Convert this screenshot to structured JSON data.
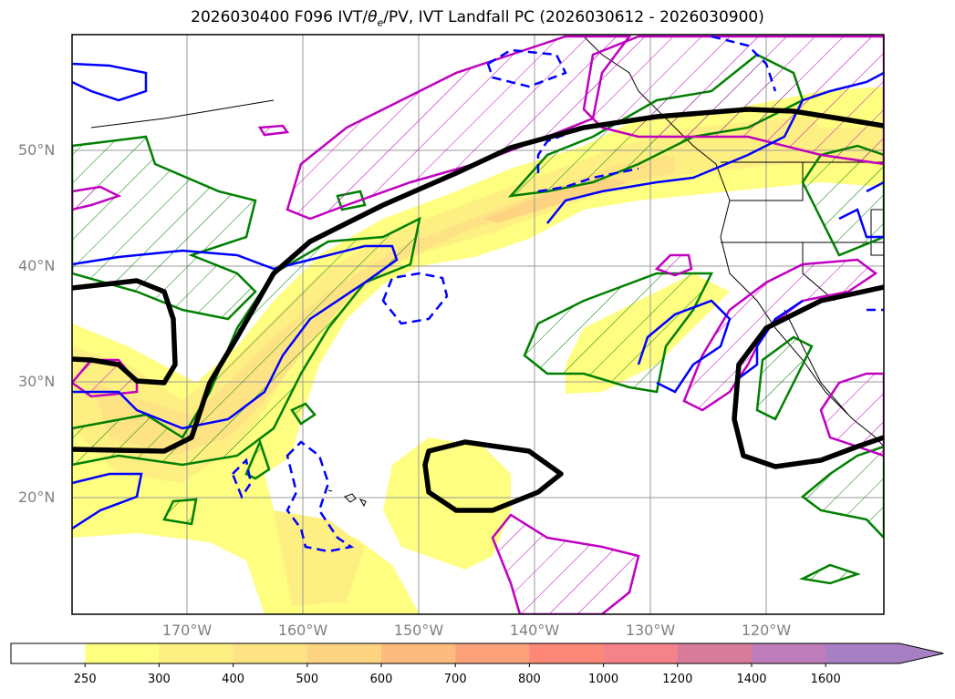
{
  "title": {
    "prefix": "2026030400 F096 IVT/",
    "theta": "θ",
    "theta_sub": "e",
    "suffix": "/PV, IVT Landfall PC (2026030612 - 2026030900)"
  },
  "axes": {
    "lat_labels": [
      "50°N",
      "40°N",
      "30°N",
      "20°N"
    ],
    "lon_labels": [
      "170°W",
      "160°W",
      "150°W",
      "140°W",
      "130°W",
      "120°W"
    ],
    "lon_range": [
      -180,
      -110
    ],
    "lat_range": [
      10,
      60
    ]
  },
  "colorbar": {
    "levels": [
      "250",
      "300",
      "400",
      "500",
      "600",
      "700",
      "800",
      "1000",
      "1200",
      "1400",
      "1600"
    ],
    "colors": [
      "#ffffff",
      "#fefe80",
      "#feef82",
      "#fee385",
      "#fed483",
      "#fdbb7e",
      "#fda17b",
      "#fe8878",
      "#f3828a",
      "#d97b9b",
      "#c07dbb",
      "#a77fc3"
    ],
    "extend": "max"
  },
  "chart_data": {
    "type": "map",
    "title": "2026030400 F096 IVT/θe/PV, IVT Landfall PC (2026030612 - 2026030900)",
    "projection": "PlateCarree",
    "extent": {
      "lon": [
        -180,
        -110
      ],
      "lat": [
        10,
        60
      ]
    },
    "fields": [
      "IVT (shaded)",
      "θe contours (green/magenta hatched)",
      "PV contours (blue solid/dashed)",
      "IVT landfall PC (black)"
    ],
    "colorbar_levels": [
      250,
      300,
      400,
      500,
      600,
      700,
      800,
      1000,
      1200,
      1400,
      1600
    ],
    "grid": true
  }
}
